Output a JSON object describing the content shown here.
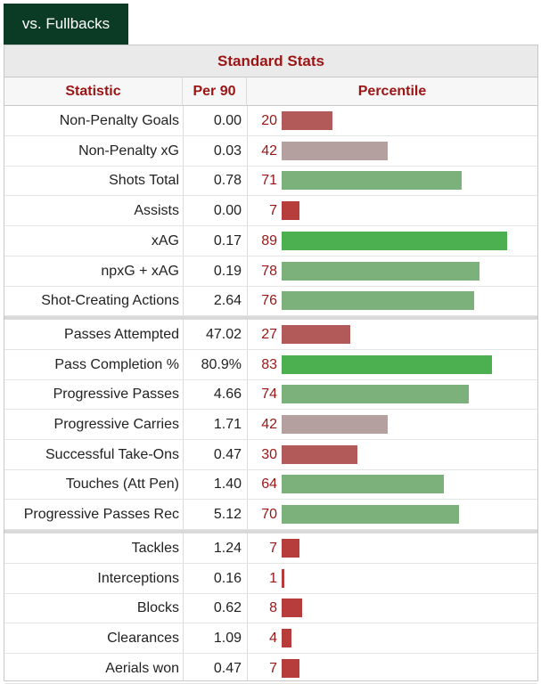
{
  "tab_label": "vs. Fullbacks",
  "section_title": "Standard Stats",
  "headers": {
    "statistic": "Statistic",
    "per90": "Per 90",
    "percentile": "Percentile"
  },
  "colors": {
    "tab_bg": "#0b3b24",
    "header_text": "#9b1515",
    "bar_low": "#b25a5a",
    "bar_mid": "#b5a0a0",
    "bar_high": "#7cb17c",
    "bar_top": "#4caf50",
    "bar_very_low": "#b73d3d"
  },
  "chart_data": {
    "type": "bar",
    "title": "Standard Stats",
    "groups": [
      [
        {
          "stat": "Non-Penalty Goals",
          "per90": "0.00",
          "percentile": 20
        },
        {
          "stat": "Non-Penalty xG",
          "per90": "0.03",
          "percentile": 42
        },
        {
          "stat": "Shots Total",
          "per90": "0.78",
          "percentile": 71
        },
        {
          "stat": "Assists",
          "per90": "0.00",
          "percentile": 7
        },
        {
          "stat": "xAG",
          "per90": "0.17",
          "percentile": 89
        },
        {
          "stat": "npxG + xAG",
          "per90": "0.19",
          "percentile": 78
        },
        {
          "stat": "Shot-Creating Actions",
          "per90": "2.64",
          "percentile": 76
        }
      ],
      [
        {
          "stat": "Passes Attempted",
          "per90": "47.02",
          "percentile": 27
        },
        {
          "stat": "Pass Completion %",
          "per90": "80.9%",
          "percentile": 83
        },
        {
          "stat": "Progressive Passes",
          "per90": "4.66",
          "percentile": 74
        },
        {
          "stat": "Progressive Carries",
          "per90": "1.71",
          "percentile": 42
        },
        {
          "stat": "Successful Take-Ons",
          "per90": "0.47",
          "percentile": 30
        },
        {
          "stat": "Touches (Att Pen)",
          "per90": "1.40",
          "percentile": 64
        },
        {
          "stat": "Progressive Passes Rec",
          "per90": "5.12",
          "percentile": 70
        }
      ],
      [
        {
          "stat": "Tackles",
          "per90": "1.24",
          "percentile": 7
        },
        {
          "stat": "Interceptions",
          "per90": "0.16",
          "percentile": 1
        },
        {
          "stat": "Blocks",
          "per90": "0.62",
          "percentile": 8
        },
        {
          "stat": "Clearances",
          "per90": "1.09",
          "percentile": 4
        },
        {
          "stat": "Aerials won",
          "per90": "0.47",
          "percentile": 7
        }
      ]
    ],
    "xlim": [
      0,
      100
    ]
  }
}
